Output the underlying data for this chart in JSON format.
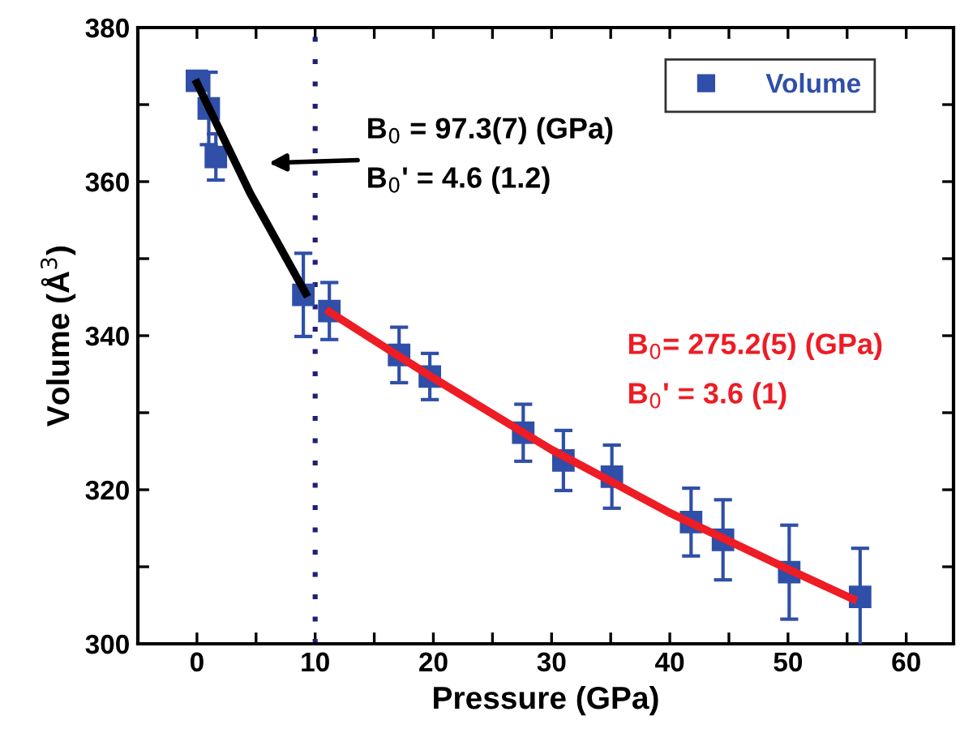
{
  "chart_data": {
    "type": "scatter",
    "xlabel": "Pressure (GPa)",
    "ylabel": "Volume (Å$^{3}$)",
    "xlim": [
      -5,
      64
    ],
    "ylim": [
      300,
      380
    ],
    "xticks": [
      0,
      {
        "value": 5,
        "label": null
      },
      10,
      {
        "value": 15,
        "label": null
      },
      20,
      {
        "value": 25,
        "label": null
      },
      30,
      {
        "value": 35,
        "label": null
      },
      40,
      {
        "value": 45,
        "label": null
      },
      50,
      {
        "value": 55,
        "label": null
      },
      60
    ],
    "yticks": [
      300,
      {
        "value": 310,
        "label": null
      },
      320,
      {
        "value": 330,
        "label": null
      },
      340,
      {
        "value": 350,
        "label": null
      },
      360,
      {
        "value": 370,
        "label": null
      },
      380
    ],
    "series": [
      {
        "name": "Volume",
        "color": "#2f4fa8",
        "marker": "square",
        "x": [
          0,
          1.0,
          1.6,
          9.0,
          11.2,
          17.1,
          19.7,
          27.6,
          31.0,
          35.1,
          41.8,
          44.5,
          50.1,
          56.1
        ],
        "values": [
          373.1,
          369.5,
          363.2,
          345.3,
          343.2,
          337.5,
          334.7,
          327.4,
          323.8,
          321.7,
          315.8,
          313.5,
          309.3,
          306.1
        ],
        "errors": [
          1,
          4.7,
          3,
          5.4,
          3.7,
          3.6,
          3,
          3.7,
          3.9,
          4.1,
          4.4,
          5.2,
          6.1,
          6.3
        ]
      },
      {
        "type": "line",
        "color": "#000000",
        "x": [
          0,
          4.5,
          9.2
        ],
        "values": [
          372.8,
          358.5,
          345.5
        ]
      },
      {
        "type": "line",
        "color": "#ee1c24",
        "x": [
          11.2,
          20,
          30,
          40,
          50,
          55.5
        ],
        "values": [
          343.1,
          334.5,
          325.2,
          317,
          309.7,
          305.8
        ]
      }
    ],
    "ref_lines": [
      {
        "axis": "x",
        "value": 10,
        "color": "#1f1f7a",
        "line_style": "dotted"
      }
    ],
    "annotations": [
      "B$_{0}$ = 97.3(7) (GPa)",
      "B$_{0}$' = 4.6 (1.2)",
      "B$_{0}$= 275.2(5) (GPa)",
      "B$_{0}$' = 3.6 (1)"
    ],
    "legend": "top right"
  }
}
